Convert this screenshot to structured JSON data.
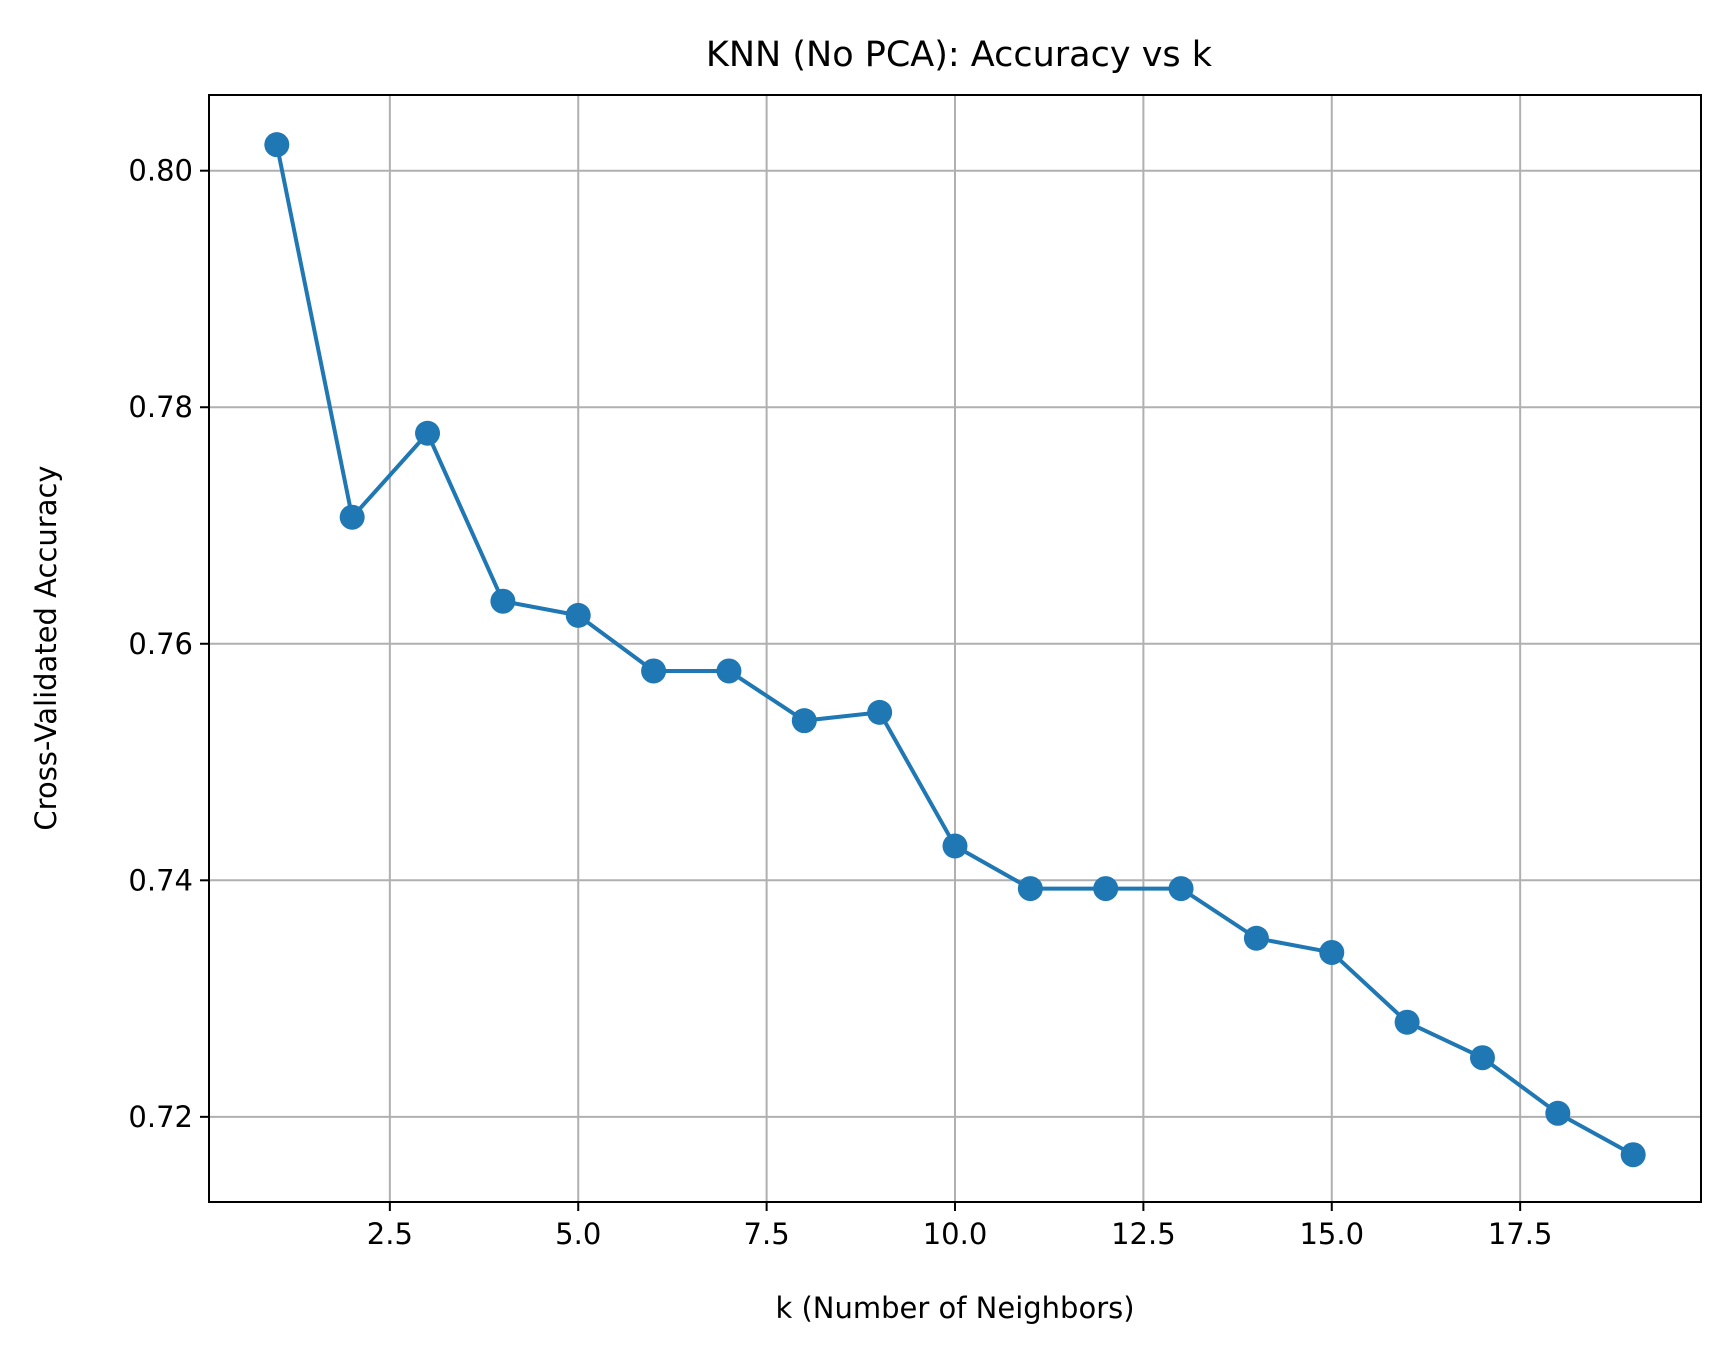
{
  "chart_data": {
    "type": "line",
    "title": "KNN (No PCA): Accuracy vs k",
    "xlabel": "k (Number of Neighbors)",
    "ylabel": "Cross-Validated Accuracy",
    "xlim": [
      0.1,
      19.9
    ],
    "ylim": [
      0.7128,
      0.8064
    ],
    "x_ticks": [
      2.5,
      5.0,
      7.5,
      10.0,
      12.5,
      15.0,
      17.5
    ],
    "x_tick_labels": [
      "2.5",
      "5.0",
      "7.5",
      "10.0",
      "12.5",
      "15.0",
      "17.5"
    ],
    "y_ticks": [
      0.72,
      0.74,
      0.76,
      0.78,
      0.8
    ],
    "y_tick_labels": [
      "0.72",
      "0.74",
      "0.76",
      "0.78",
      "0.80"
    ],
    "grid": true,
    "color": "#1f77b4",
    "series": [
      {
        "x": [
          1,
          2,
          3,
          4,
          5,
          6,
          7,
          8,
          9,
          10,
          11,
          12,
          13,
          14,
          15,
          16,
          17,
          18,
          19
        ],
        "values": [
          0.8022,
          0.7707,
          0.7778,
          0.7636,
          0.7624,
          0.7577,
          0.7577,
          0.7535,
          0.7542,
          0.7429,
          0.7393,
          0.7393,
          0.7393,
          0.7351,
          0.7339,
          0.728,
          0.725,
          0.7203,
          0.7168
        ]
      }
    ]
  }
}
